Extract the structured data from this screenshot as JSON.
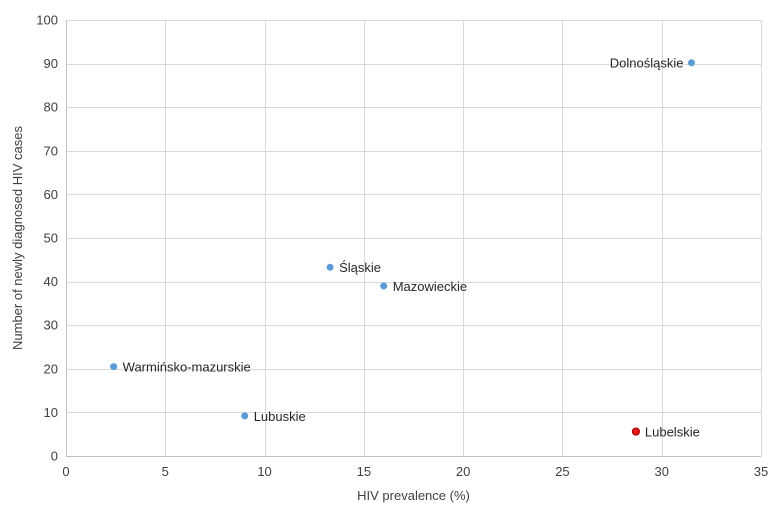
{
  "chart_data": {
    "type": "scatter",
    "title": "",
    "xlabel": "HIV prevalence (%)",
    "ylabel": "Number of newly diagnosed HIV cases",
    "xlim": [
      0,
      35
    ],
    "ylim": [
      0,
      100
    ],
    "x_ticks": [
      0,
      5,
      10,
      15,
      20,
      25,
      30,
      35
    ],
    "y_ticks": [
      0,
      10,
      20,
      30,
      40,
      50,
      60,
      70,
      80,
      90,
      100
    ],
    "grid": true,
    "legend": "none",
    "colors": {
      "default": "#5b9bd5",
      "highlight": "#e31a1c"
    },
    "points": [
      {
        "label": "Dolnośląskie",
        "x": 31.5,
        "y": 90.2,
        "highlight": false,
        "label_side": "left"
      },
      {
        "label": "Śląskie",
        "x": 13.3,
        "y": 43.3,
        "highlight": false,
        "label_side": "right"
      },
      {
        "label": "Mazowieckie",
        "x": 16.0,
        "y": 39.0,
        "highlight": false,
        "label_side": "right"
      },
      {
        "label": "Warmińsko-mazurskie",
        "x": 2.4,
        "y": 20.5,
        "highlight": false,
        "label_side": "right"
      },
      {
        "label": "Lubuskie",
        "x": 9.0,
        "y": 9.2,
        "highlight": false,
        "label_side": "right"
      },
      {
        "label": "Lubelskie",
        "x": 28.7,
        "y": 5.6,
        "highlight": true,
        "label_side": "right"
      }
    ]
  }
}
